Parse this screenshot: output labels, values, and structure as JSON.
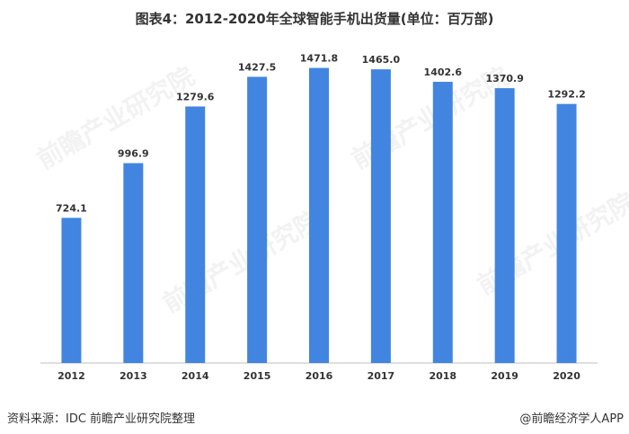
{
  "title": "图表4：2012-2020年全球智能手机出货量(单位：百万部)",
  "watermark": "前瞻产业研究院",
  "footer": {
    "source": "资料来源：IDC 前瞻产业研究院整理",
    "credit": "@前瞻经济学人APP"
  },
  "colors": {
    "bar": "#4285e0",
    "axis": "#bfbfbf"
  },
  "chart_data": {
    "type": "bar",
    "categories": [
      "2012",
      "2013",
      "2014",
      "2015",
      "2016",
      "2017",
      "2018",
      "2019",
      "2020"
    ],
    "values": [
      724.1,
      996.9,
      1279.6,
      1427.5,
      1471.8,
      1465.0,
      1402.6,
      1370.9,
      1292.2
    ],
    "value_labels": [
      "724.1",
      "996.9",
      "1279.6",
      "1427.5",
      "1471.8",
      "1465.0",
      "1402.6",
      "1370.9",
      "1292.2"
    ],
    "ylim": [
      0,
      1600
    ],
    "grid": false,
    "legend": "none"
  }
}
